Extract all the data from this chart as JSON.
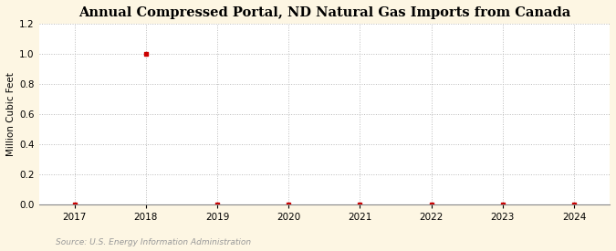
{
  "title": "Annual Compressed Portal, ND Natural Gas Imports from Canada",
  "ylabel": "Million Cubic Feet",
  "source_text": "Source: U.S. Energy Information Administration",
  "background_color": "#fdf6e3",
  "plot_background_color": "#ffffff",
  "x_values": [
    2017,
    2018,
    2019,
    2020,
    2021,
    2022,
    2023,
    2024
  ],
  "y_values": [
    0,
    1.0,
    0,
    0,
    0,
    0,
    0,
    0
  ],
  "marker_color": "#cc0000",
  "marker_size": 3.5,
  "marker_style": "s",
  "xlim": [
    2016.5,
    2024.5
  ],
  "ylim": [
    0.0,
    1.2
  ],
  "yticks": [
    0.0,
    0.2,
    0.4,
    0.6,
    0.8,
    1.0,
    1.2
  ],
  "xticks": [
    2017,
    2018,
    2019,
    2020,
    2021,
    2022,
    2023,
    2024
  ],
  "grid_color": "#bbbbbb",
  "grid_linestyle": ":",
  "grid_linewidth": 0.7,
  "title_fontsize": 10.5,
  "ylabel_fontsize": 7.5,
  "tick_fontsize": 7.5,
  "source_fontsize": 6.5,
  "source_color": "#999999"
}
